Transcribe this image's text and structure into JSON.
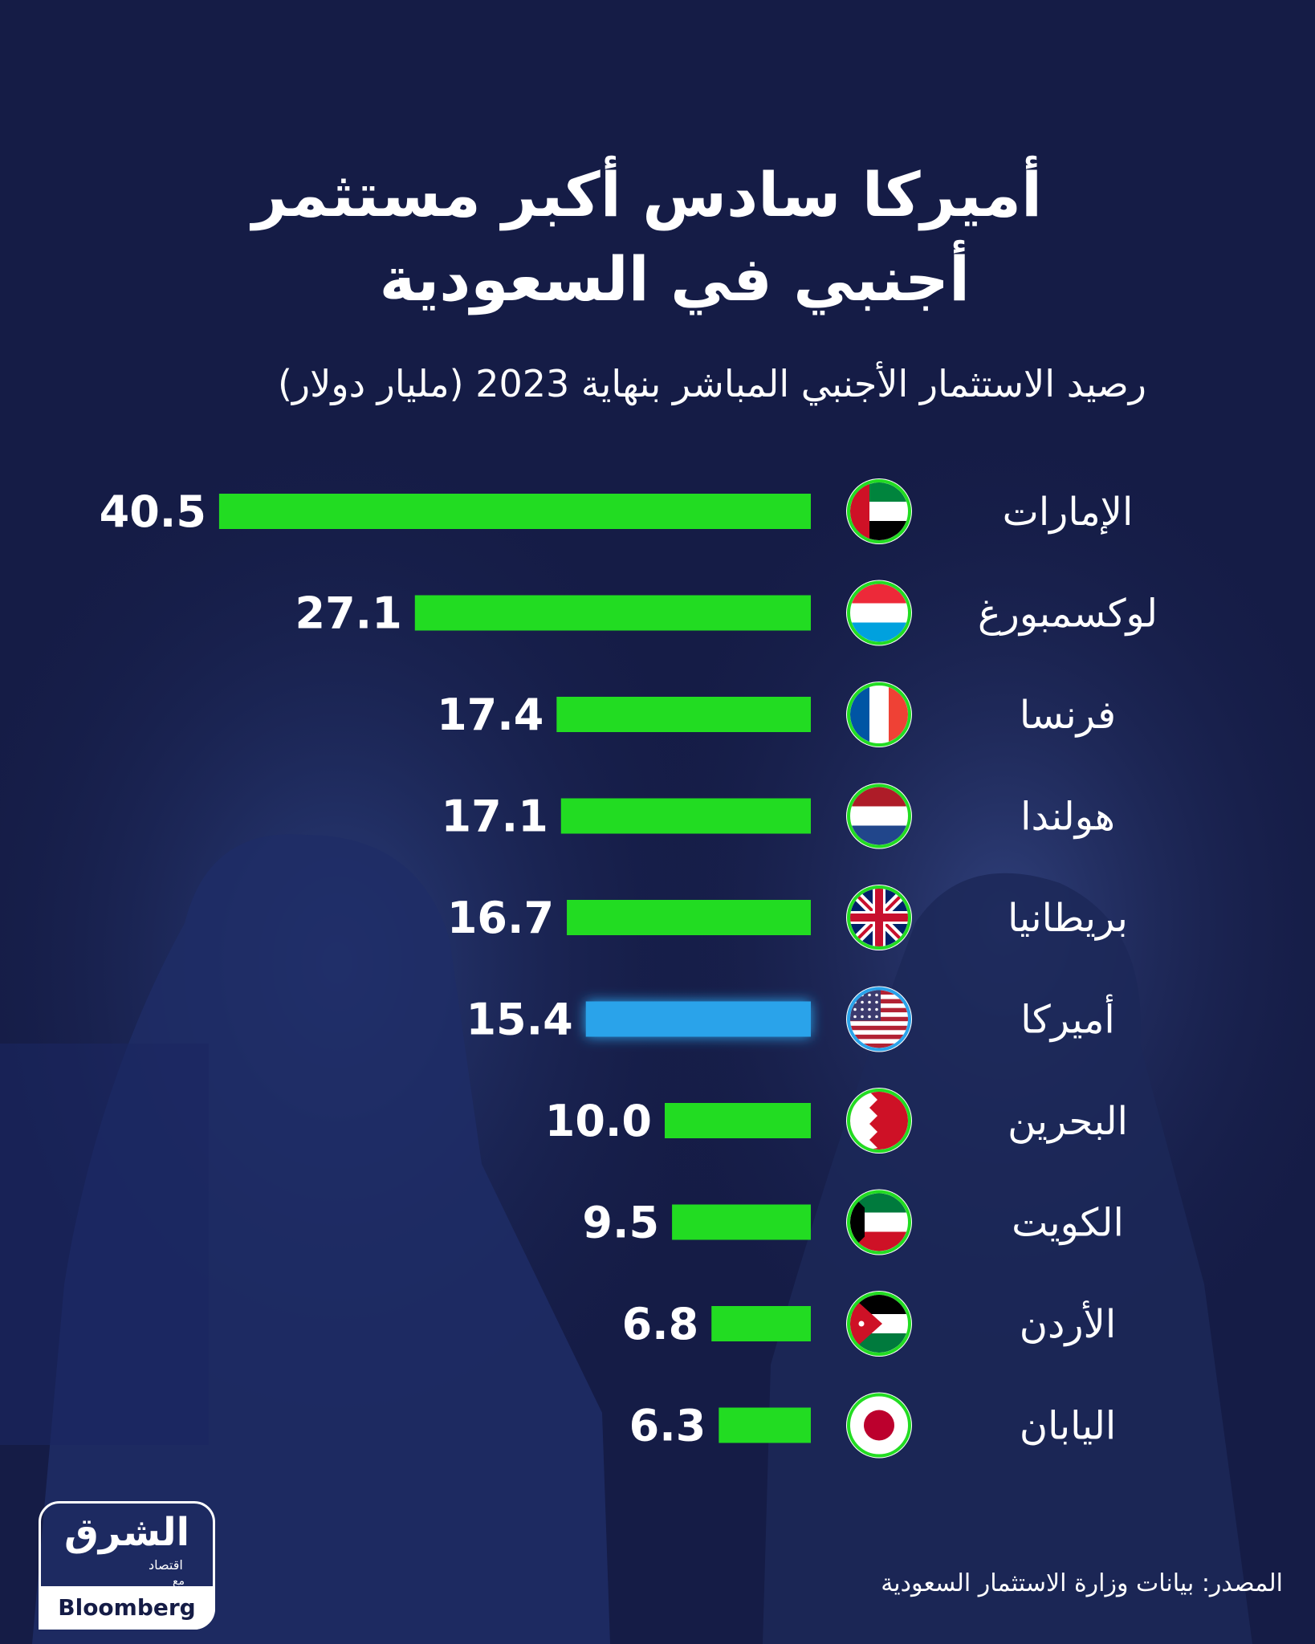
{
  "title_lines": [
    "أميركا سادس أكبر مستثمر",
    "أجنبي في السعودية"
  ],
  "subtitle": "رصيد الاستثمار الأجنبي المباشر بنهاية 2023 (مليار دولار)",
  "colors": {
    "background": "#151c46",
    "bar_default": "#22dc22",
    "bar_highlight": "#2aa3ea",
    "text": "#ffffff"
  },
  "chart_data": {
    "type": "bar",
    "orientation": "horizontal",
    "categories": [
      "الإمارات",
      "لوكسمبورغ",
      "فرنسا",
      "هولندا",
      "بريطانيا",
      "أميركا",
      "البحرين",
      "الكويت",
      "الأردن",
      "اليابان"
    ],
    "values": [
      40.5,
      27.1,
      17.4,
      17.1,
      16.7,
      15.4,
      10.0,
      9.5,
      6.8,
      6.3
    ],
    "value_labels": [
      "40.5",
      "27.1",
      "17.4",
      "17.1",
      "16.7",
      "15.4",
      "10.0",
      "9.5",
      "6.8",
      "6.3"
    ],
    "highlight_index": 5,
    "flags": [
      "uae-flag-icon",
      "luxembourg-flag-icon",
      "france-flag-icon",
      "netherlands-flag-icon",
      "uk-flag-icon",
      "usa-flag-icon",
      "bahrain-flag-icon",
      "kuwait-flag-icon",
      "jordan-flag-icon",
      "japan-flag-icon"
    ],
    "unit": "مليار دولار"
  },
  "logo": {
    "arabic": "الشرق",
    "sub": "اقتصاد",
    "with": "مع",
    "partner": "Bloomberg"
  },
  "source": "المصدر: بيانات وزارة الاستثمار السعودية"
}
